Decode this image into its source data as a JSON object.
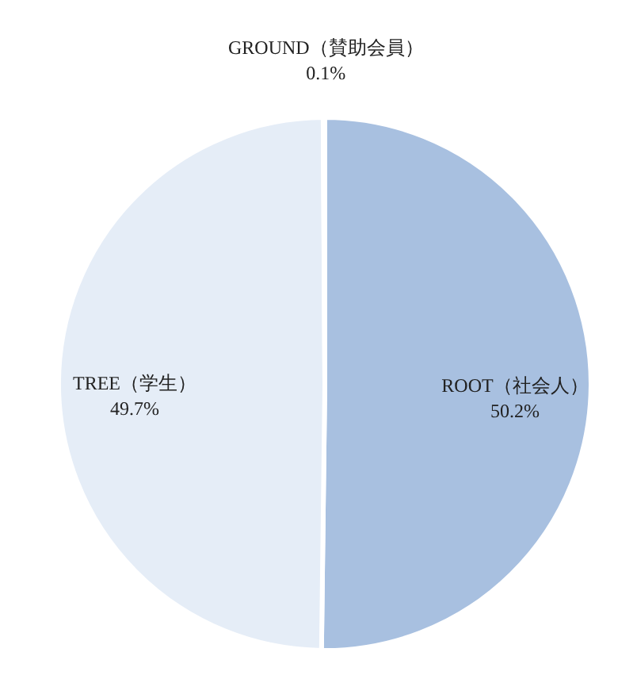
{
  "chart_data": {
    "type": "pie",
    "categories": [
      "ROOT（社会人）",
      "TREE（学生）",
      "GROUND（賛助会員）"
    ],
    "values": [
      50.2,
      49.7,
      0.1
    ],
    "value_labels": [
      "50.2%",
      "49.7%",
      "0.1%"
    ],
    "colors": [
      "#a8c0e0",
      "#e5edf7",
      "#f4f7fb"
    ]
  }
}
